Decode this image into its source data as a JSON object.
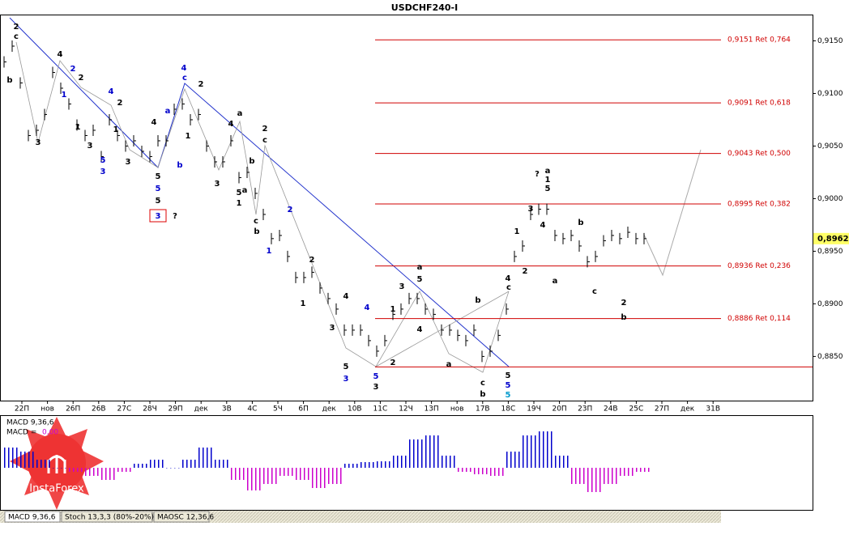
{
  "chart_data": {
    "type": "ohlc",
    "title": "USDCHF240-I",
    "color": "#000000",
    "ylim": [
      0.8808,
      0.9175
    ],
    "yticks": [
      {
        "value": 0.915,
        "label": "0,9150"
      },
      {
        "value": 0.91,
        "label": "0,9100"
      },
      {
        "value": 0.905,
        "label": "0,9050"
      },
      {
        "value": 0.9,
        "label": "0,9000"
      },
      {
        "value": 0.895,
        "label": "0,8950"
      },
      {
        "value": 0.89,
        "label": "0,8900"
      },
      {
        "value": 0.885,
        "label": "0,8850"
      }
    ],
    "values": [
      0.913,
      0.9145,
      0.911,
      0.906,
      0.9065,
      0.908,
      0.912,
      0.9105,
      0.909,
      0.907,
      0.906,
      0.9065,
      0.904,
      0.9075,
      0.906,
      0.905,
      0.9055,
      0.9045,
      0.904,
      0.9055,
      0.9055,
      0.9085,
      0.909,
      0.9075,
      0.908,
      0.905,
      0.9035,
      0.9035,
      0.9055,
      0.902,
      0.9025,
      0.9005,
      0.8985,
      0.8962,
      0.8965,
      0.8945,
      0.8925,
      0.8925,
      0.893,
      0.8915,
      0.8905,
      0.8895,
      0.8875,
      0.8875,
      0.8875,
      0.8865,
      0.8855,
      0.8865,
      0.889,
      0.8895,
      0.8905,
      0.8905,
      0.8895,
      0.889,
      0.8875,
      0.8875,
      0.887,
      0.8865,
      0.8875,
      0.885,
      0.8855,
      0.887,
      0.8895,
      0.8945,
      0.8955,
      0.8985,
      0.899,
      0.899,
      0.8965,
      0.8962,
      0.8965,
      0.8955,
      0.894,
      0.8945,
      0.896,
      0.8965,
      0.8962,
      0.8968,
      0.8962,
      0.8962
    ],
    "x_axis_labels": [
      "22П",
      "нов",
      "26П",
      "26В",
      "27С",
      "28Ч",
      "29П",
      "дек",
      "3В",
      "4С",
      "5Ч",
      "6П",
      "дек",
      "10В",
      "11С",
      "12Ч",
      "13П",
      "нов",
      "17В",
      "18С",
      "19Ч",
      "20П",
      "23П",
      "24В",
      "25С",
      "27П",
      "дек",
      "31В"
    ],
    "last_price": {
      "value": 0.8962,
      "label": "0,8962"
    },
    "levels": [
      {
        "value": 0.9151,
        "label": "0,9151 Ret 0,764"
      },
      {
        "value": 0.9091,
        "label": "0,9091 Ret 0,618"
      },
      {
        "value": 0.9043,
        "label": "0,9043 Ret 0,500"
      },
      {
        "value": 0.8995,
        "label": "0,8995 Ret 0,382"
      },
      {
        "value": 0.8936,
        "label": "0,8936 Ret 0,236"
      },
      {
        "value": 0.8886,
        "label": "0,8886 Ret 0,114"
      }
    ],
    "base_level": 0.884,
    "wave_labels": [
      "2",
      "c",
      "b",
      "3",
      "4",
      "2",
      "1",
      "2",
      "1",
      "3",
      "4",
      "2",
      "1",
      "5",
      "3",
      "3",
      "4",
      "5",
      "5",
      "5",
      "a",
      "b",
      "4",
      "c",
      "2",
      "1",
      "3",
      "a",
      "4",
      "5",
      "a",
      "1",
      "b",
      "c",
      "b",
      "2",
      "c",
      "2",
      "1",
      "2",
      "1",
      "4",
      "4",
      "3",
      "5",
      "3",
      "5",
      "3",
      "2",
      "1",
      "3",
      "a",
      "5",
      "4",
      "a",
      "b",
      "c",
      "b",
      "4",
      "c",
      "5",
      "5",
      "5",
      "1",
      "2",
      "3",
      "4",
      "5",
      "1",
      "a",
      "?",
      "a",
      "b",
      "c",
      "2",
      "b",
      "?",
      "3"
    ],
    "indicator": "MACD 9,36,6",
    "readout_prefix": "MACD =",
    "readout": "0,00",
    "histogram": [
      25,
      20,
      10,
      0,
      -5,
      -10,
      -15,
      -5,
      5,
      10,
      0,
      10,
      25,
      10,
      -15,
      -28,
      -20,
      -10,
      -15,
      -25,
      -20,
      5,
      7,
      8,
      15,
      35,
      40,
      15,
      -5,
      -8,
      -10,
      20,
      40,
      45,
      15,
      -20,
      -30,
      -20,
      -10,
      -5
    ],
    "hist_lim": [
      -52,
      65
    ],
    "tabs": [
      "MACD 9,36,6",
      "Stoch 13,3,3 (80%-20%)",
      "MAOSC 12,36,6"
    ],
    "logo": "InstaForex"
  }
}
